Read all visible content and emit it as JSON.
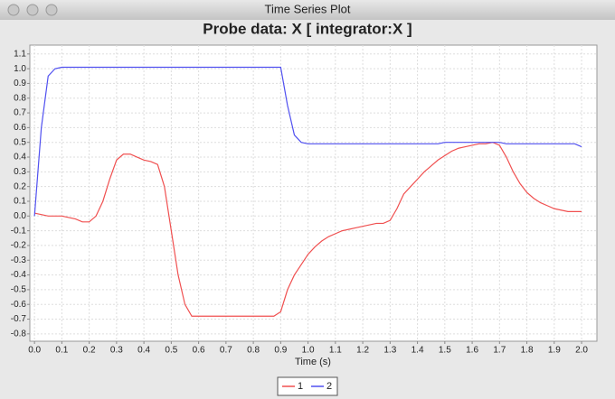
{
  "window": {
    "title": "Time Series Plot"
  },
  "chart_data": {
    "type": "line",
    "title": "Probe data: X  [ integrator:X ]",
    "x_label": "Time (s)",
    "x": [
      0,
      0.025,
      0.05,
      0.075,
      0.1,
      0.125,
      0.15,
      0.175,
      0.2,
      0.225,
      0.25,
      0.275,
      0.3,
      0.325,
      0.35,
      0.375,
      0.4,
      0.425,
      0.45,
      0.475,
      0.5,
      0.525,
      0.55,
      0.575,
      0.6,
      0.625,
      0.65,
      0.675,
      0.7,
      0.725,
      0.75,
      0.775,
      0.8,
      0.825,
      0.85,
      0.875,
      0.9,
      0.925,
      0.95,
      0.975,
      1.0,
      1.025,
      1.05,
      1.075,
      1.1,
      1.125,
      1.15,
      1.175,
      1.2,
      1.225,
      1.25,
      1.275,
      1.3,
      1.325,
      1.35,
      1.375,
      1.4,
      1.425,
      1.45,
      1.475,
      1.5,
      1.525,
      1.55,
      1.575,
      1.6,
      1.625,
      1.65,
      1.675,
      1.7,
      1.725,
      1.75,
      1.775,
      1.8,
      1.825,
      1.85,
      1.875,
      1.9,
      1.925,
      1.95,
      1.975,
      2.0
    ],
    "series": [
      {
        "name": "1",
        "color": "#f05050",
        "values": [
          0.02,
          0.01,
          0.0,
          0.0,
          0.0,
          -0.01,
          -0.02,
          -0.04,
          -0.04,
          0.0,
          0.1,
          0.25,
          0.38,
          0.42,
          0.42,
          0.4,
          0.38,
          0.37,
          0.35,
          0.2,
          -0.1,
          -0.4,
          -0.6,
          -0.68,
          -0.68,
          -0.68,
          -0.68,
          -0.68,
          -0.68,
          -0.68,
          -0.68,
          -0.68,
          -0.68,
          -0.68,
          -0.68,
          -0.68,
          -0.65,
          -0.5,
          -0.4,
          -0.33,
          -0.26,
          -0.21,
          -0.17,
          -0.14,
          -0.12,
          -0.1,
          -0.09,
          -0.08,
          -0.07,
          -0.06,
          -0.05,
          -0.05,
          -0.03,
          0.05,
          0.15,
          0.2,
          0.25,
          0.3,
          0.34,
          0.38,
          0.41,
          0.44,
          0.46,
          0.47,
          0.48,
          0.49,
          0.49,
          0.5,
          0.48,
          0.4,
          0.3,
          0.22,
          0.16,
          0.12,
          0.09,
          0.07,
          0.05,
          0.04,
          0.03,
          0.03,
          0.03
        ]
      },
      {
        "name": "2",
        "color": "#5050f0",
        "values": [
          0.0,
          0.6,
          0.95,
          1.0,
          1.01,
          1.01,
          1.01,
          1.01,
          1.01,
          1.01,
          1.01,
          1.01,
          1.01,
          1.01,
          1.01,
          1.01,
          1.01,
          1.01,
          1.01,
          1.01,
          1.01,
          1.01,
          1.01,
          1.01,
          1.01,
          1.01,
          1.01,
          1.01,
          1.01,
          1.01,
          1.01,
          1.01,
          1.01,
          1.01,
          1.01,
          1.01,
          1.01,
          0.75,
          0.55,
          0.5,
          0.49,
          0.49,
          0.49,
          0.49,
          0.49,
          0.49,
          0.49,
          0.49,
          0.49,
          0.49,
          0.49,
          0.49,
          0.49,
          0.49,
          0.49,
          0.49,
          0.49,
          0.49,
          0.49,
          0.49,
          0.5,
          0.5,
          0.5,
          0.5,
          0.5,
          0.5,
          0.5,
          0.5,
          0.5,
          0.49,
          0.49,
          0.49,
          0.49,
          0.49,
          0.49,
          0.49,
          0.49,
          0.49,
          0.49,
          0.49,
          0.47
        ]
      }
    ],
    "xlim": [
      -0.017,
      2.056
    ],
    "ylim": [
      -0.85,
      1.16
    ],
    "xticks": [
      {
        "value": 0,
        "label": "0.0"
      },
      0.1,
      0.2,
      0.3,
      0.4,
      0.5,
      0.6,
      0.7,
      0.8,
      0.9,
      {
        "value": 1,
        "label": "1.0"
      },
      1.1,
      1.2,
      1.3,
      1.4,
      1.5,
      1.6,
      1.7,
      1.8,
      1.9,
      {
        "value": 2,
        "label": "2.0"
      }
    ],
    "yticks": [
      -0.8,
      -0.7,
      -0.6,
      -0.5,
      -0.4,
      -0.3,
      -0.2,
      -0.1,
      {
        "value": 0,
        "label": "0.0"
      },
      0.1,
      0.2,
      0.3,
      0.4,
      0.5,
      0.6,
      0.7,
      0.8,
      0.9,
      {
        "value": 1,
        "label": "1.0"
      },
      1.1
    ],
    "grid": true,
    "legend": "bottom"
  }
}
